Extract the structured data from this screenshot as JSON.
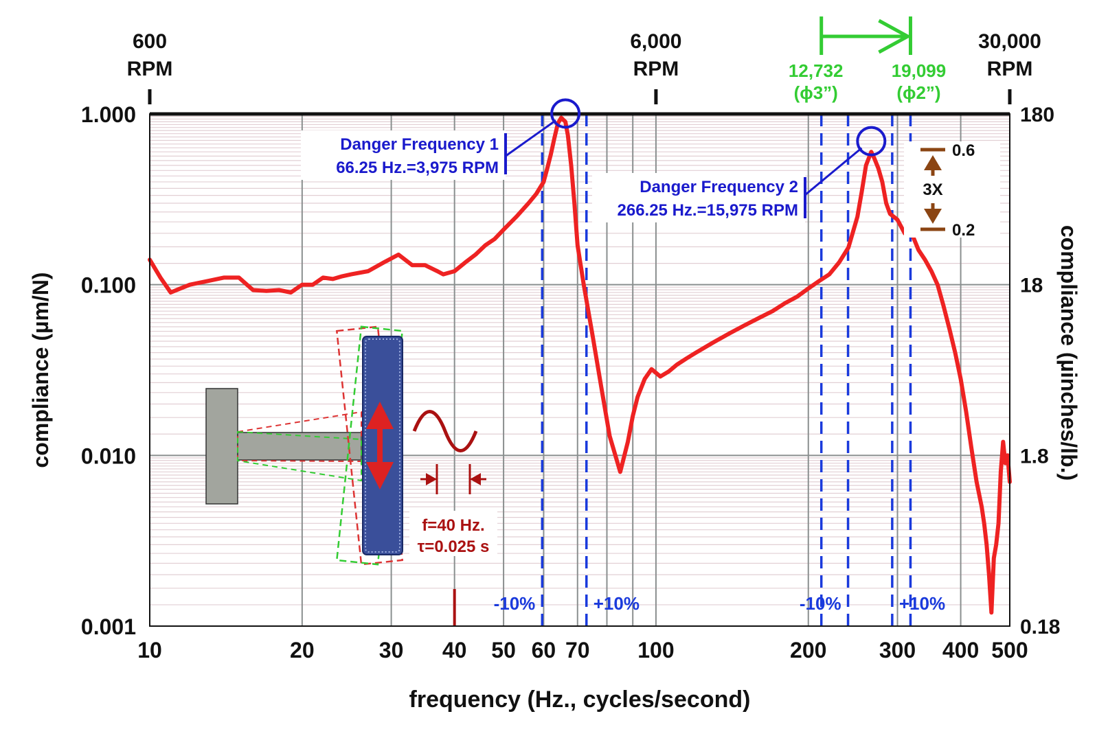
{
  "chart_data": {
    "type": "line",
    "title": "",
    "xlabel": "frequency (Hz., cycles/second)",
    "ylabel": "compliance (µm/N)",
    "ylabel_right": "compliance (µinches/lb.)",
    "x_scale": "log",
    "y_scale": "log",
    "xlim": [
      10,
      500
    ],
    "ylim": [
      0.001,
      1.0
    ],
    "grid": true,
    "x_ticks": [
      10,
      20,
      30,
      40,
      50,
      60,
      70,
      100,
      200,
      300,
      400,
      500
    ],
    "x_tick_labels": [
      "10",
      "20",
      "30",
      "40",
      "50",
      "60",
      "70",
      "100",
      "200",
      "300",
      "400",
      "500"
    ],
    "y_ticks": [
      0.001,
      0.01,
      0.1,
      1.0
    ],
    "y_tick_labels": [
      "0.001",
      "0.010",
      "0.100",
      "1.000"
    ],
    "y_right_ticks": [
      0.001,
      0.01,
      0.1,
      1.0
    ],
    "y_right_tick_labels": [
      "0.18",
      "1.8",
      "18",
      "180"
    ],
    "top_axis": [
      {
        "x": 10,
        "line1": "600",
        "line2": "RPM"
      },
      {
        "x": 100,
        "line1": "6,000",
        "line2": "RPM"
      },
      {
        "x": 500,
        "line1": "30,000",
        "line2": "RPM"
      }
    ],
    "series": [
      {
        "color": "#ee2222",
        "x": [
          10,
          10.5,
          11,
          11.5,
          12,
          13,
          14,
          15,
          16,
          17,
          18,
          19,
          20,
          21,
          22,
          23,
          24,
          25,
          27,
          29,
          31,
          33,
          35,
          37,
          38,
          40,
          42,
          44,
          46,
          48,
          50,
          53,
          56,
          58,
          60,
          61,
          62,
          63,
          64,
          65,
          66.25,
          67,
          68,
          69,
          70,
          72,
          75,
          78,
          81,
          85,
          88,
          90,
          92,
          95,
          98,
          102,
          106,
          110,
          115,
          120,
          130,
          140,
          150,
          160,
          170,
          180,
          190,
          200,
          210,
          220,
          230,
          240,
          250,
          255,
          260,
          266.25,
          270,
          275,
          280,
          285,
          290,
          295,
          300,
          310,
          320,
          330,
          340,
          350,
          360,
          370,
          380,
          390,
          400,
          410,
          420,
          430,
          440,
          445,
          450,
          455,
          460,
          465,
          470,
          475,
          480,
          485,
          490,
          495,
          500
        ],
        "y": [
          0.14,
          0.11,
          0.09,
          0.095,
          0.1,
          0.105,
          0.11,
          0.11,
          0.093,
          0.092,
          0.093,
          0.09,
          0.1,
          0.1,
          0.11,
          0.108,
          0.112,
          0.115,
          0.12,
          0.135,
          0.15,
          0.13,
          0.13,
          0.12,
          0.115,
          0.12,
          0.135,
          0.15,
          0.17,
          0.185,
          0.21,
          0.25,
          0.3,
          0.34,
          0.4,
          0.48,
          0.58,
          0.72,
          0.88,
          0.95,
          0.9,
          0.75,
          0.5,
          0.3,
          0.17,
          0.1,
          0.05,
          0.025,
          0.013,
          0.008,
          0.012,
          0.017,
          0.022,
          0.028,
          0.032,
          0.029,
          0.031,
          0.034,
          0.037,
          0.04,
          0.046,
          0.052,
          0.058,
          0.064,
          0.07,
          0.078,
          0.085,
          0.095,
          0.105,
          0.115,
          0.135,
          0.165,
          0.25,
          0.35,
          0.5,
          0.6,
          0.55,
          0.48,
          0.4,
          0.3,
          0.26,
          0.25,
          0.24,
          0.2,
          0.2,
          0.16,
          0.14,
          0.12,
          0.1,
          0.075,
          0.055,
          0.04,
          0.028,
          0.018,
          0.011,
          0.007,
          0.005,
          0.004,
          0.003,
          0.002,
          0.0012,
          0.0025,
          0.003,
          0.004,
          0.008,
          0.012,
          0.009,
          0.01,
          0.007
        ]
      }
    ],
    "danger_markers": [
      {
        "x": 66.25,
        "y": 0.9,
        "line1": "Danger Frequency 1",
        "line2": "66.25 Hz.=3,975 RPM"
      },
      {
        "x": 266.25,
        "y": 0.62,
        "line1": "Danger Frequency 2",
        "line2": "266.25 Hz.=15,975 RPM"
      }
    ],
    "band_lines": [
      {
        "x": 59.6,
        "label": "-10%",
        "label_side": "left"
      },
      {
        "x": 72.9,
        "label": "+10%",
        "label_side": "right"
      },
      {
        "x": 239.6,
        "label": "-10%",
        "label_side": "left"
      },
      {
        "x": 292.9,
        "label": "+10%",
        "label_side": "right"
      }
    ],
    "speed_range": {
      "x_start": 212.2,
      "x_end": 318.3,
      "start_line1": "12,732",
      "start_line2": "(ϕ3”)",
      "end_line1": "19,099",
      "end_line2": "(ϕ2”)"
    },
    "ratio_annotation": {
      "top": "0.6",
      "middle": "3X",
      "bottom": "0.2"
    },
    "excitation": {
      "x": 40,
      "line1": "f=40 Hz.",
      "line2": "τ=0.025 s"
    }
  },
  "colors": {
    "curve": "#ee2222",
    "danger": "#1a1acc",
    "band": "#1a3adc",
    "speed": "#33cc33",
    "excitation": "#aa1111",
    "ratio": "#8b4513",
    "grid_major": "#8a8f8f",
    "grid_minor": "#e2cfd4"
  }
}
